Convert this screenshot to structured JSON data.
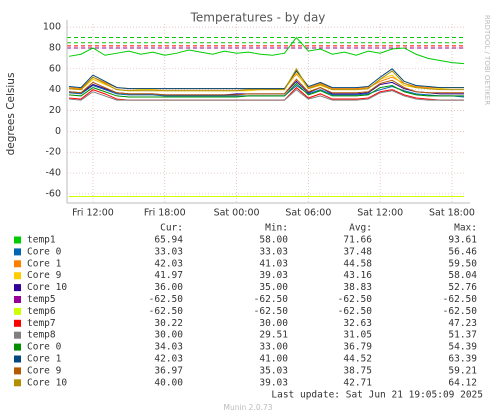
{
  "chart_data": {
    "type": "line",
    "title": "Temperatures - by day",
    "y_label": "degrees Celsius",
    "side_text": "RRDTOOL / TOBI OETIKER",
    "columns": [
      "Cur:",
      "Min:",
      "Avg:",
      "Max:"
    ],
    "last_update": "Last update: Sat Jun 21 19:05:09 2025",
    "footer": "Munin 2.0.73",
    "xlim": [
      9.83,
      43.17
    ],
    "xticks": [
      {
        "value": 12,
        "label": "Fri 12:00"
      },
      {
        "value": 18,
        "label": "Fri 18:00"
      },
      {
        "value": 24,
        "label": "Sat 00:00"
      },
      {
        "value": 30,
        "label": "Sat 06:00"
      },
      {
        "value": 36,
        "label": "Sat 12:00"
      },
      {
        "value": 42,
        "label": "Sat 18:00"
      }
    ],
    "ylim": [
      -68.7,
      103
    ],
    "yticks": [
      -60,
      -40,
      -20,
      0,
      20,
      40,
      60,
      80,
      100
    ],
    "grid": true,
    "thresholds": [
      {
        "value": 90,
        "color": "#00cc00"
      },
      {
        "value": 85,
        "color": "#00cc00"
      },
      {
        "value": 82,
        "color": "#ff0000"
      },
      {
        "value": 80,
        "color": "#990099"
      }
    ],
    "x": [
      10,
      11,
      12,
      13,
      14,
      15,
      16,
      17,
      18,
      19,
      20,
      21,
      22,
      23,
      24,
      25,
      26,
      27,
      28,
      29,
      30,
      31,
      32,
      33,
      34,
      35,
      36,
      37,
      38,
      39,
      40,
      41,
      42,
      43
    ],
    "series": [
      {
        "name": "temp1",
        "color": "#00cc00",
        "cur": "65.94",
        "min": "58.00",
        "avg": "71.66",
        "max": "93.61",
        "values": [
          72,
          74,
          80,
          73,
          75,
          77,
          74,
          76,
          73,
          75,
          78,
          76,
          74,
          77,
          75,
          76,
          74,
          73,
          75,
          90,
          77,
          79,
          74,
          76,
          73,
          77,
          75,
          79,
          80,
          74,
          70,
          68,
          66,
          65
        ]
      },
      {
        "name": "Core 0",
        "color": "#0066b3",
        "cur": "33.03",
        "min": "33.03",
        "avg": "37.48",
        "max": "56.46",
        "values": [
          37,
          36,
          44,
          40,
          36,
          35,
          35,
          35,
          34,
          34,
          34,
          34,
          34,
          34,
          34,
          34,
          34,
          34,
          34,
          44,
          36,
          40,
          35,
          35,
          35,
          36,
          40,
          43,
          39,
          36,
          35,
          34,
          34,
          33
        ]
      },
      {
        "name": "Core 1",
        "color": "#ff8000",
        "cur": "42.03",
        "min": "41.03",
        "avg": "44.58",
        "max": "59.50",
        "values": [
          42,
          41,
          52,
          47,
          42,
          41,
          41,
          41,
          41,
          41,
          41,
          41,
          41,
          41,
          41,
          41,
          41,
          41,
          41,
          55,
          42,
          46,
          41,
          41,
          41,
          42,
          48,
          52,
          46,
          43,
          42,
          42,
          42,
          42
        ]
      },
      {
        "name": "Core 9",
        "color": "#ffcc00",
        "cur": "41.97",
        "min": "39.03",
        "avg": "43.16",
        "max": "58.04",
        "values": [
          41,
          40,
          50,
          45,
          40,
          39,
          40,
          40,
          39,
          39,
          39,
          39,
          39,
          39,
          39,
          39,
          40,
          40,
          40,
          56,
          41,
          44,
          40,
          40,
          40,
          41,
          50,
          54,
          44,
          42,
          41,
          41,
          42,
          42
        ]
      },
      {
        "name": "Core 10",
        "color": "#330099",
        "cur": "36.00",
        "min": "35.00",
        "avg": "38.83",
        "max": "52.76",
        "values": [
          38,
          37,
          45,
          41,
          37,
          36,
          36,
          36,
          35,
          35,
          35,
          35,
          35,
          35,
          36,
          36,
          36,
          36,
          36,
          48,
          37,
          42,
          36,
          36,
          36,
          37,
          45,
          47,
          41,
          38,
          37,
          36,
          36,
          36
        ]
      },
      {
        "name": "temp5",
        "color": "#990099",
        "cur": "-62.50",
        "min": "-62.50",
        "avg": "-62.50",
        "max": "-62.50",
        "values": [
          -62.5,
          -62.5,
          -62.5,
          -62.5,
          -62.5,
          -62.5,
          -62.5,
          -62.5,
          -62.5,
          -62.5,
          -62.5,
          -62.5,
          -62.5,
          -62.5,
          -62.5,
          -62.5,
          -62.5,
          -62.5,
          -62.5,
          -62.5,
          -62.5,
          -62.5,
          -62.5,
          -62.5,
          -62.5,
          -62.5,
          -62.5,
          -62.5,
          -62.5,
          -62.5,
          -62.5,
          -62.5,
          -62.5,
          -62.5
        ]
      },
      {
        "name": "temp6",
        "color": "#ccff00",
        "cur": "-62.50",
        "min": "-62.50",
        "avg": "-62.50",
        "max": "-62.50",
        "values": [
          -62.5,
          -62.5,
          -62.5,
          -62.5,
          -62.5,
          -62.5,
          -62.5,
          -62.5,
          -62.5,
          -62.5,
          -62.5,
          -62.5,
          -62.5,
          -62.5,
          -62.5,
          -62.5,
          -62.5,
          -62.5,
          -62.5,
          -62.5,
          -62.5,
          -62.5,
          -62.5,
          -62.5,
          -62.5,
          -62.5,
          -62.5,
          -62.5,
          -62.5,
          -62.5,
          -62.5,
          -62.5,
          -62.5,
          -62.5
        ]
      },
      {
        "name": "temp7",
        "color": "#ff0000",
        "cur": "30.22",
        "min": "30.00",
        "avg": "32.63",
        "max": "47.23",
        "values": [
          32,
          31,
          40,
          36,
          31,
          30,
          30,
          30,
          30,
          30,
          30,
          30,
          30,
          30,
          30,
          30,
          30,
          30,
          30,
          42,
          32,
          36,
          31,
          31,
          31,
          32,
          38,
          40,
          35,
          32,
          31,
          30,
          30,
          30
        ]
      },
      {
        "name": "temp8",
        "color": "#808080",
        "cur": "30.00",
        "min": "29.51",
        "avg": "31.05",
        "max": "51.37",
        "values": [
          31,
          30,
          38,
          34,
          30,
          30,
          30,
          30,
          30,
          30,
          30,
          30,
          30,
          30,
          30,
          30,
          30,
          30,
          30,
          40,
          31,
          34,
          30,
          30,
          30,
          31,
          37,
          39,
          34,
          31,
          30,
          30,
          30,
          30
        ]
      },
      {
        "name": "Core 0",
        "color": "#008f00",
        "cur": "34.03",
        "min": "33.00",
        "avg": "36.79",
        "max": "54.39",
        "values": [
          35,
          34,
          42,
          38,
          34,
          33,
          33,
          33,
          33,
          33,
          33,
          33,
          33,
          33,
          33,
          34,
          34,
          34,
          34,
          46,
          35,
          39,
          34,
          34,
          34,
          35,
          42,
          44,
          38,
          35,
          34,
          34,
          34,
          34
        ]
      },
      {
        "name": "Core 1",
        "color": "#00487d",
        "cur": "42.03",
        "min": "41.00",
        "avg": "44.52",
        "max": "63.39",
        "values": [
          43,
          42,
          54,
          48,
          42,
          41,
          41,
          41,
          41,
          41,
          41,
          41,
          41,
          41,
          41,
          41,
          41,
          41,
          41,
          58,
          43,
          47,
          42,
          42,
          42,
          43,
          52,
          60,
          48,
          44,
          43,
          42,
          42,
          42
        ]
      },
      {
        "name": "Core 9",
        "color": "#b35a00",
        "cur": "36.97",
        "min": "35.03",
        "avg": "38.75",
        "max": "59.21",
        "values": [
          38,
          37,
          47,
          42,
          37,
          36,
          36,
          36,
          35,
          35,
          35,
          35,
          35,
          35,
          35,
          36,
          36,
          36,
          36,
          50,
          38,
          42,
          37,
          37,
          37,
          38,
          46,
          49,
          42,
          38,
          37,
          37,
          37,
          37
        ]
      },
      {
        "name": "Core 10",
        "color": "#b38f00",
        "cur": "40.00",
        "min": "39.03",
        "avg": "42.71",
        "max": "64.12",
        "values": [
          41,
          40,
          52,
          46,
          40,
          39,
          39,
          39,
          39,
          39,
          39,
          39,
          39,
          39,
          39,
          40,
          40,
          40,
          40,
          60,
          41,
          45,
          40,
          40,
          40,
          41,
          50,
          58,
          46,
          42,
          41,
          40,
          40,
          40
        ]
      }
    ]
  }
}
